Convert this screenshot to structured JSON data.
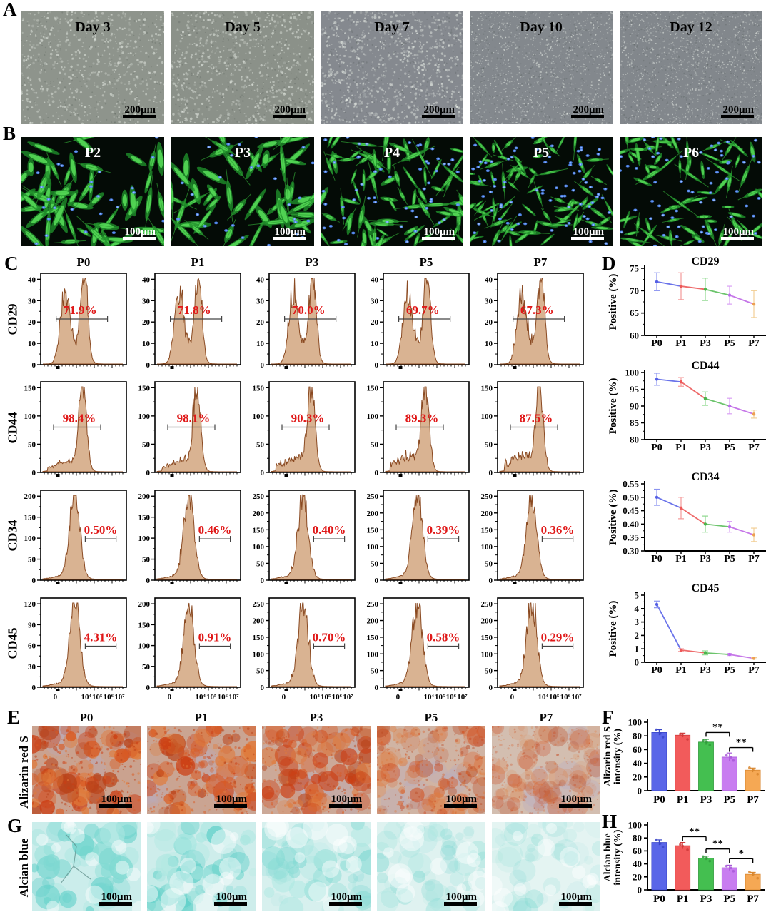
{
  "colors": {
    "percent_text": "#e01818",
    "hist_fill": "#d9b392",
    "hist_stroke": "#8a4a22",
    "bar_palette": [
      "#5a66e8",
      "#f25b5b",
      "#44bf50",
      "#c87df0",
      "#f5a854"
    ],
    "bar_dark": [
      "#3a46c8",
      "#d03a3a",
      "#2f9a3a",
      "#a858d8",
      "#d8862e"
    ],
    "line_segments": [
      "#6a73ea",
      "#ee6a6a",
      "#6cc46c",
      "#c678e8"
    ],
    "point_palette": [
      "#5560e4",
      "#ed5858",
      "#4cb44c",
      "#bc6cec",
      "#eda052"
    ],
    "err_palette": [
      "#8a93f0",
      "#f49a9a",
      "#8ed88e",
      "#d9a0f4",
      "#f2cf96"
    ]
  },
  "panelA": {
    "label": "A",
    "scale_label": "200μm",
    "tiles": [
      {
        "label": "Day 3",
        "bg": "#8e948c",
        "density": 0.3
      },
      {
        "label": "Day 5",
        "bg": "#8b9189",
        "density": 0.42
      },
      {
        "label": "Day 7",
        "bg": "#85898f",
        "density": 0.62
      },
      {
        "label": "Day 10",
        "bg": "#83888d",
        "density": 0.95
      },
      {
        "label": "Day 12",
        "bg": "#82878c",
        "density": 1.0
      }
    ]
  },
  "panelB": {
    "label": "B",
    "scale_label": "100μm",
    "tiles": [
      {
        "label": "P2",
        "cells": 55,
        "nuclei": 26,
        "size": 1.25
      },
      {
        "label": "P3",
        "cells": 50,
        "nuclei": 28,
        "size": 1.3
      },
      {
        "label": "P4",
        "cells": 78,
        "nuclei": 55,
        "size": 0.9
      },
      {
        "label": "P5",
        "cells": 88,
        "nuclei": 78,
        "size": 0.75
      },
      {
        "label": "P6",
        "cells": 72,
        "nuclei": 62,
        "size": 0.85
      }
    ]
  },
  "panelC": {
    "label": "C",
    "col_headers": [
      "P0",
      "P1",
      "P3",
      "P5",
      "P7"
    ],
    "x_tick_labels": [
      "0",
      "10⁴",
      "10⁵",
      "10⁶",
      "10⁷"
    ],
    "rows": [
      {
        "marker": "CD29",
        "shape": "bimodal",
        "cells": [
          {
            "percent": "71.9%",
            "yticks": [
              "0",
              "10",
              "20",
              "30",
              "40"
            ]
          },
          {
            "percent": "71.8%",
            "yticks": [
              "0",
              "10",
              "20",
              "30",
              "40"
            ]
          },
          {
            "percent": "70.0%",
            "yticks": [
              "0",
              "10",
              "20",
              "30",
              "40"
            ]
          },
          {
            "percent": "69.7%",
            "yticks": [
              "0",
              "10",
              "20",
              "30",
              "40"
            ]
          },
          {
            "percent": "67.3%",
            "yticks": [
              "0",
              "10",
              "20",
              "30",
              "40"
            ]
          }
        ]
      },
      {
        "marker": "CD44",
        "shape": "tailpeak",
        "cells": [
          {
            "percent": "98.4%",
            "yticks": [
              "0",
              "50",
              "100",
              "150"
            ]
          },
          {
            "percent": "98.1%",
            "yticks": [
              "0",
              "50",
              "100",
              "150"
            ]
          },
          {
            "percent": "90.3%",
            "yticks": [
              "0",
              "50",
              "100",
              "150"
            ]
          },
          {
            "percent": "89.3%",
            "yticks": [
              "0",
              "50",
              "100",
              "150"
            ]
          },
          {
            "percent": "87.5%",
            "yticks": [
              "0",
              "50",
              "100",
              "150"
            ]
          }
        ]
      },
      {
        "marker": "CD34",
        "shape": "peak",
        "cells": [
          {
            "percent": "0.50%",
            "yticks": [
              "0",
              "50",
              "100",
              "150",
              "200"
            ]
          },
          {
            "percent": "0.46%",
            "yticks": [
              "0",
              "50",
              "100",
              "150",
              "200"
            ]
          },
          {
            "percent": "0.40%",
            "yticks": [
              "0",
              "50",
              "100",
              "150",
              "200",
              "250"
            ]
          },
          {
            "percent": "0.39%",
            "yticks": [
              "0",
              "50",
              "100",
              "150",
              "200",
              "250"
            ]
          },
          {
            "percent": "0.36%",
            "yticks": [
              "0",
              "50",
              "100",
              "150",
              "200",
              "250"
            ]
          }
        ]
      },
      {
        "marker": "CD45",
        "shape": "peak",
        "cells": [
          {
            "percent": "4.31%",
            "yticks": [
              "0",
              "30",
              "60",
              "90",
              "120"
            ]
          },
          {
            "percent": "0.91%",
            "yticks": [
              "0",
              "50",
              "100",
              "150",
              "200"
            ]
          },
          {
            "percent": "0.70%",
            "yticks": [
              "0",
              "50",
              "100",
              "150",
              "200",
              "250"
            ]
          },
          {
            "percent": "0.58%",
            "yticks": [
              "0",
              "50",
              "100",
              "150",
              "200",
              "250"
            ]
          },
          {
            "percent": "0.29%",
            "yticks": [
              "0",
              "50",
              "100",
              "150",
              "200",
              "250"
            ]
          }
        ]
      }
    ]
  },
  "panelD": {
    "label": "D",
    "ylabel": "Positive (%)",
    "categories": [
      "P0",
      "P1",
      "P3",
      "P5",
      "P7"
    ]
  },
  "panelE": {
    "label": "E",
    "row_label": "Alizarin red S",
    "scale_label": "100μm",
    "col_headers": [
      "P0",
      "P1",
      "P3",
      "P5",
      "P7"
    ],
    "intensities": [
      0.85,
      0.8,
      0.7,
      0.5,
      0.3
    ]
  },
  "panelF": {
    "label": "F"
  },
  "panelG": {
    "label": "G",
    "row_label": "Alcian blue",
    "scale_label": "100μm",
    "intensities": [
      0.73,
      0.68,
      0.49,
      0.34,
      0.24
    ]
  },
  "panelH": {
    "label": "H"
  },
  "chart_data": [
    {
      "id": "D-CD29",
      "type": "line",
      "title": "CD29",
      "ylabel": "Positive (%)",
      "categories": [
        "P0",
        "P1",
        "P3",
        "P5",
        "P7"
      ],
      "values": [
        72,
        71,
        70.3,
        69,
        67
      ],
      "errors": [
        2,
        3,
        2.5,
        2,
        3
      ],
      "ylim": [
        60,
        75
      ],
      "yticks": [
        "60",
        "65",
        "70",
        "75"
      ]
    },
    {
      "id": "D-CD44",
      "type": "line",
      "title": "CD44",
      "ylabel": "Positive (%)",
      "categories": [
        "P0",
        "P1",
        "P3",
        "P5",
        "P7"
      ],
      "values": [
        98,
        97.2,
        92.2,
        90,
        87.6
      ],
      "errors": [
        1.8,
        1.3,
        2,
        2.3,
        1.2
      ],
      "ylim": [
        80,
        100
      ],
      "yticks": [
        "80",
        "85",
        "90",
        "95",
        "100"
      ]
    },
    {
      "id": "D-CD34",
      "type": "line",
      "title": "CD34",
      "ylabel": "Positive (%)",
      "categories": [
        "P0",
        "P1",
        "P3",
        "P5",
        "P7"
      ],
      "values": [
        0.5,
        0.46,
        0.4,
        0.39,
        0.36
      ],
      "errors": [
        0.03,
        0.04,
        0.03,
        0.02,
        0.025
      ],
      "ylim": [
        0.3,
        0.55
      ],
      "yticks": [
        "0.30",
        "0.35",
        "0.40",
        "0.45",
        "0.50",
        "0.55"
      ]
    },
    {
      "id": "D-CD45",
      "type": "line",
      "title": "CD45",
      "ylabel": "Positive (%)",
      "categories": [
        "P0",
        "P1",
        "P3",
        "P5",
        "P7"
      ],
      "values": [
        4.31,
        0.91,
        0.7,
        0.58,
        0.29
      ],
      "errors": [
        0.25,
        0.1,
        0.15,
        0.08,
        0.05
      ],
      "ylim": [
        0,
        5
      ],
      "yticks": [
        "0",
        "1",
        "2",
        "3",
        "4",
        "5"
      ]
    },
    {
      "id": "F-alizarin",
      "type": "bar",
      "title": "",
      "ylabel": [
        "Alizarin red S",
        "intensity (%)"
      ],
      "categories": [
        "P0",
        "P1",
        "P3",
        "P5",
        "P7"
      ],
      "values": [
        85,
        81,
        71,
        49,
        30
      ],
      "errors": [
        4,
        3,
        4,
        6,
        3
      ],
      "ylim": [
        0,
        100
      ],
      "yticks": [
        "0",
        "20",
        "40",
        "60",
        "80",
        "100"
      ],
      "significance": [
        {
          "from": "P3",
          "to": "P5",
          "label": "**"
        },
        {
          "from": "P5",
          "to": "P7",
          "label": "**"
        }
      ]
    },
    {
      "id": "H-alcian",
      "type": "bar",
      "title": "",
      "ylabel": [
        "Alcian blue",
        "intensity (%)"
      ],
      "categories": [
        "P0",
        "P1",
        "P3",
        "P5",
        "P7"
      ],
      "values": [
        73,
        68,
        49,
        34,
        24
      ],
      "errors": [
        4,
        5,
        3,
        4,
        3
      ],
      "ylim": [
        0,
        100
      ],
      "yticks": [
        "0",
        "20",
        "40",
        "60",
        "80",
        "100"
      ],
      "significance": [
        {
          "from": "P1",
          "to": "P3",
          "label": "**"
        },
        {
          "from": "P3",
          "to": "P5",
          "label": "**"
        },
        {
          "from": "P5",
          "to": "P7",
          "label": "*"
        }
      ]
    }
  ]
}
